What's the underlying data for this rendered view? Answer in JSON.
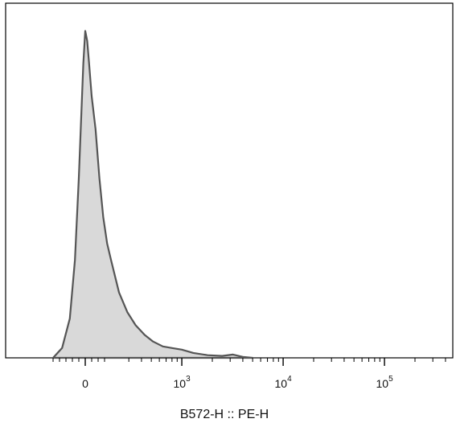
{
  "chart_data": {
    "type": "area",
    "title": "",
    "xlabel": "B572-H :: PE-H",
    "ylabel": "",
    "x_scale": "biexponential",
    "xlim": [
      -300,
      250000
    ],
    "ylim": [
      0,
      1.08
    ],
    "grid": false,
    "legend": "none",
    "colors": {
      "fill": "#d9d9d9",
      "stroke": "#555555",
      "axis": "#000000"
    },
    "major_ticks": [
      {
        "value": 0,
        "label": "0",
        "base": "",
        "exp": ""
      },
      {
        "value": 1000,
        "label": "",
        "base": "10",
        "exp": "3"
      },
      {
        "value": 10000,
        "label": "",
        "base": "10",
        "exp": "4"
      },
      {
        "value": 100000,
        "label": "",
        "base": "10",
        "exp": "5"
      }
    ],
    "series": [
      {
        "x": [
          -250,
          -180,
          -120,
          -80,
          -50,
          -30,
          -15,
          0,
          15,
          30,
          50,
          80,
          110,
          140,
          170,
          200,
          240,
          290,
          350,
          430,
          520,
          650,
          800,
          1000,
          1300,
          1800,
          2500,
          3200,
          4000,
          5000
        ],
        "y": [
          0.0,
          0.03,
          0.12,
          0.3,
          0.55,
          0.75,
          0.9,
          1.0,
          0.97,
          0.9,
          0.8,
          0.7,
          0.55,
          0.43,
          0.35,
          0.3,
          0.2,
          0.14,
          0.1,
          0.07,
          0.05,
          0.035,
          0.03,
          0.025,
          0.015,
          0.008,
          0.006,
          0.01,
          0.003,
          0.0
        ]
      }
    ]
  }
}
